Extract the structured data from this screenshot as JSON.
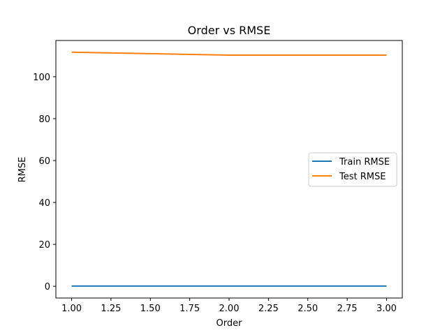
{
  "chart_data": {
    "type": "line",
    "title": "Order vs RMSE",
    "xlabel": "Order",
    "ylabel": "RMSE",
    "xlim": [
      0.9,
      3.1
    ],
    "ylim": [
      -5.6,
      117.3
    ],
    "xticks": [
      1.0,
      1.25,
      1.5,
      1.75,
      2.0,
      2.25,
      2.5,
      2.75,
      3.0
    ],
    "xtick_labels": [
      "1.00",
      "1.25",
      "1.50",
      "1.75",
      "2.00",
      "2.25",
      "2.50",
      "2.75",
      "3.00"
    ],
    "yticks": [
      0,
      20,
      40,
      60,
      80,
      100
    ],
    "ytick_labels": [
      "0",
      "20",
      "40",
      "60",
      "80",
      "100"
    ],
    "grid": false,
    "legend_position": "center-right",
    "x": [
      1,
      2,
      3
    ],
    "series": [
      {
        "name": "Train RMSE",
        "color": "#1f77b4",
        "values": [
          0.1,
          0.1,
          0.1
        ]
      },
      {
        "name": "Test RMSE",
        "color": "#ff7f0e",
        "values": [
          111.7,
          110.3,
          110.3
        ]
      }
    ]
  }
}
